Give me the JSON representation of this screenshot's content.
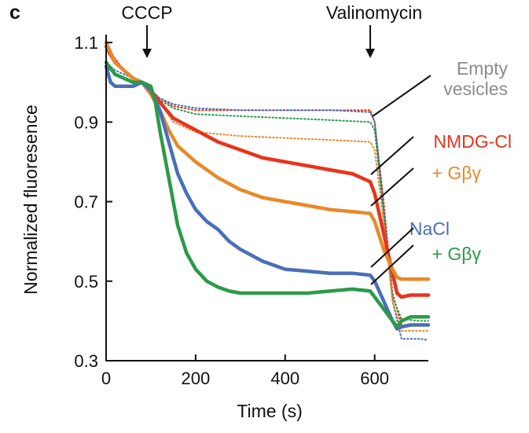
{
  "chart_data": {
    "type": "line",
    "panel_label": "c",
    "xlabel": "Time (s)",
    "ylabel": "Normalized fluoresence",
    "xlim": [
      0,
      720
    ],
    "ylim": [
      0.3,
      1.12
    ],
    "xticks": [
      0,
      200,
      400,
      600
    ],
    "yticks": [
      0.3,
      0.5,
      0.7,
      0.9,
      1.1
    ],
    "xtick_labels": [
      "0",
      "200",
      "400",
      "600"
    ],
    "ytick_labels": [
      "0.3",
      "0.5",
      "0.7",
      "0.9",
      "1.1"
    ],
    "grid": false,
    "annotations": [
      {
        "text": "CCCP",
        "x": 85
      },
      {
        "text": "Valinomycin",
        "x": 595
      }
    ],
    "series": [
      {
        "name": "Empty vesicles",
        "group": "empty",
        "color": "#e8341c",
        "style": "dotted",
        "x": [
          0,
          20,
          40,
          60,
          80,
          100,
          120,
          150,
          200,
          300,
          400,
          500,
          590,
          600,
          620,
          640,
          660,
          700,
          720
        ],
        "y": [
          1.09,
          1.06,
          1.03,
          1.01,
          1.0,
          0.98,
          0.96,
          0.94,
          0.93,
          0.93,
          0.93,
          0.93,
          0.93,
          0.9,
          0.7,
          0.47,
          0.39,
          0.39,
          0.39
        ]
      },
      {
        "name": "Empty vesicles",
        "group": "empty",
        "color": "#4a6fb8",
        "style": "dotted",
        "x": [
          0,
          20,
          40,
          60,
          80,
          100,
          120,
          150,
          200,
          300,
          400,
          500,
          590,
          600,
          620,
          640,
          660,
          700,
          720
        ],
        "y": [
          1.05,
          1.03,
          1.02,
          1.01,
          1.0,
          0.98,
          0.96,
          0.945,
          0.935,
          0.93,
          0.93,
          0.93,
          0.925,
          0.9,
          0.68,
          0.45,
          0.355,
          0.355,
          0.352
        ]
      },
      {
        "name": "Empty vesicles",
        "group": "empty",
        "color": "#2b9a48",
        "style": "dotted",
        "x": [
          0,
          20,
          40,
          60,
          80,
          100,
          120,
          150,
          200,
          300,
          400,
          500,
          590,
          600,
          620,
          640,
          660,
          700,
          720
        ],
        "y": [
          1.04,
          1.02,
          1.01,
          1.0,
          0.995,
          0.98,
          0.955,
          0.935,
          0.92,
          0.915,
          0.91,
          0.905,
          0.9,
          0.88,
          0.67,
          0.46,
          0.405,
          0.4,
          0.4
        ]
      },
      {
        "name": "Empty vesicles",
        "group": "empty",
        "color": "#e8892a",
        "style": "dotted",
        "x": [
          0,
          20,
          40,
          60,
          80,
          100,
          120,
          150,
          200,
          250,
          300,
          400,
          500,
          590,
          600,
          620,
          640,
          660,
          700,
          720
        ],
        "y": [
          1.08,
          1.05,
          1.03,
          1.01,
          1.0,
          0.98,
          0.95,
          0.9,
          0.875,
          0.87,
          0.865,
          0.86,
          0.855,
          0.85,
          0.83,
          0.65,
          0.45,
          0.375,
          0.375,
          0.375
        ]
      },
      {
        "name": "NMDG-Cl",
        "group": "nmdg",
        "color": "#e8341c",
        "style": "solid",
        "x": [
          0,
          20,
          40,
          60,
          80,
          100,
          120,
          150,
          200,
          250,
          300,
          350,
          400,
          450,
          500,
          550,
          590,
          600,
          620,
          640,
          650,
          660,
          680,
          700,
          720
        ],
        "y": [
          1.09,
          1.05,
          1.03,
          1.01,
          1.0,
          0.98,
          0.95,
          0.91,
          0.88,
          0.85,
          0.83,
          0.81,
          0.8,
          0.79,
          0.78,
          0.77,
          0.75,
          0.72,
          0.62,
          0.52,
          0.47,
          0.46,
          0.465,
          0.465,
          0.465
        ]
      },
      {
        "name": "+ Gβγ",
        "group": "nmdg",
        "color": "#e8892a",
        "style": "solid",
        "x": [
          0,
          20,
          40,
          60,
          80,
          100,
          120,
          140,
          160,
          200,
          250,
          300,
          350,
          400,
          450,
          500,
          550,
          590,
          600,
          620,
          640,
          650,
          660,
          680,
          700,
          720
        ],
        "y": [
          1.1,
          1.05,
          1.03,
          1.01,
          1.0,
          0.97,
          0.93,
          0.88,
          0.84,
          0.8,
          0.76,
          0.73,
          0.71,
          0.7,
          0.69,
          0.68,
          0.675,
          0.67,
          0.65,
          0.58,
          0.53,
          0.51,
          0.505,
          0.505,
          0.505,
          0.505
        ]
      },
      {
        "name": "NaCl",
        "group": "nacl",
        "color": "#4a6fb8",
        "style": "solid",
        "x": [
          0,
          10,
          20,
          40,
          60,
          80,
          100,
          120,
          140,
          160,
          180,
          200,
          225,
          250,
          275,
          300,
          350,
          400,
          450,
          500,
          550,
          590,
          600,
          620,
          640,
          650,
          660,
          680,
          700,
          720
        ],
        "y": [
          1.04,
          1.0,
          0.99,
          0.99,
          0.99,
          1.0,
          0.98,
          0.93,
          0.85,
          0.77,
          0.72,
          0.68,
          0.65,
          0.63,
          0.6,
          0.58,
          0.55,
          0.53,
          0.525,
          0.52,
          0.52,
          0.515,
          0.5,
          0.45,
          0.4,
          0.38,
          0.385,
          0.39,
          0.39,
          0.39
        ]
      },
      {
        "name": "+ Gβγ",
        "group": "nacl",
        "color": "#2b9a48",
        "style": "solid",
        "x": [
          0,
          20,
          40,
          60,
          80,
          100,
          110,
          120,
          140,
          160,
          180,
          200,
          225,
          250,
          275,
          300,
          350,
          400,
          450,
          500,
          550,
          590,
          600,
          620,
          640,
          650,
          660,
          680,
          700,
          720
        ],
        "y": [
          1.05,
          1.02,
          1.01,
          1.0,
          1.0,
          0.99,
          0.95,
          0.88,
          0.76,
          0.64,
          0.57,
          0.53,
          0.5,
          0.485,
          0.475,
          0.47,
          0.47,
          0.47,
          0.47,
          0.475,
          0.48,
          0.475,
          0.46,
          0.43,
          0.4,
          0.385,
          0.4,
          0.41,
          0.41,
          0.41
        ]
      }
    ],
    "labels": [
      {
        "text": "Empty",
        "color": "#8c8c8c",
        "group": "empty"
      },
      {
        "text": "vesicles",
        "color": "#8c8c8c",
        "group": "empty"
      },
      {
        "text": "NMDG-Cl",
        "color": "#e8341c",
        "group": "nmdg-cl"
      },
      {
        "text": "+ Gβγ",
        "color": "#e8892a",
        "group": "nmdg-gbg"
      },
      {
        "text": "NaCl",
        "color": "#4a6fb8",
        "group": "nacl"
      },
      {
        "text": "+ Gβγ",
        "color": "#2b9a48",
        "group": "nacl-gbg"
      }
    ]
  }
}
